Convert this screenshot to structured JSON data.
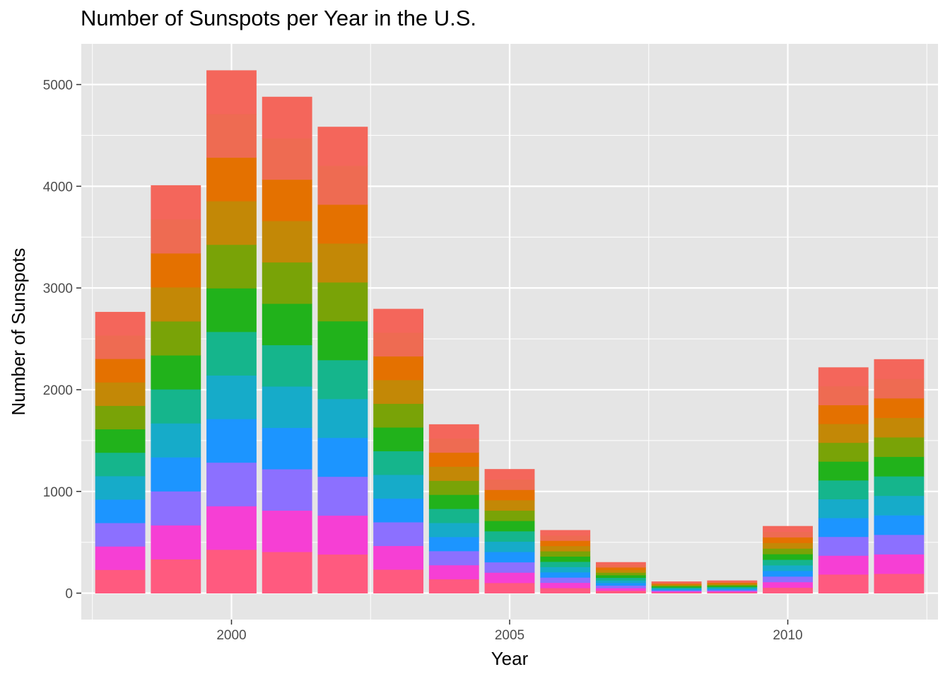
{
  "chart_data": {
    "type": "bar",
    "title": "Number of Sunspots per Year in the U.S.",
    "xlabel": "Year",
    "ylabel": "Number of Sunspots",
    "categories": [
      1998,
      1999,
      2000,
      2001,
      2002,
      2003,
      2004,
      2005,
      2006,
      2007,
      2008,
      2009,
      2010,
      2011,
      2012
    ],
    "values": [
      2765,
      4010,
      5140,
      4880,
      4585,
      2795,
      1660,
      1220,
      620,
      305,
      115,
      125,
      660,
      2220,
      2300
    ],
    "x_ticks": [
      2000,
      2005,
      2010
    ],
    "y_ticks": [
      0,
      1000,
      2000,
      3000,
      4000,
      5000
    ],
    "xlim": [
      1997.3,
      2012.7
    ],
    "ylim": [
      -260,
      5400
    ],
    "stacked_segments_per_bar": 12,
    "grid": true,
    "legend": "none",
    "colors": {
      "panel_background": "#e5e5e5",
      "gridline": "#ffffff",
      "segment_palette": [
        "#ff5a7f",
        "#f63fd4",
        "#8c70ff",
        "#1c95ff",
        "#16abc9",
        "#15b58c",
        "#21b21b",
        "#79a307",
        "#c38806",
        "#e47100",
        "#ee6b52",
        "#f4665b"
      ]
    }
  }
}
